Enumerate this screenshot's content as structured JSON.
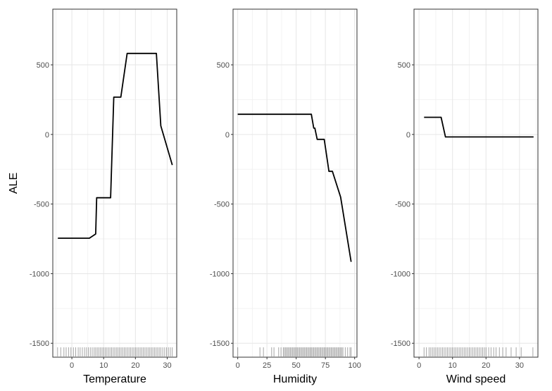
{
  "colors": {
    "background": "#ffffff",
    "panel_border": "#333333",
    "grid_major": "#e6e6e6",
    "grid_minor": "#f2f2f2",
    "line": "#000000",
    "tick_text": "#4d4d4d",
    "rug": "#000000"
  },
  "chart_data": {
    "type": "line",
    "ylabel": "ALE",
    "ylim": [
      -1600,
      900
    ],
    "y_ticks": [
      -1500,
      -1000,
      -500,
      0,
      500
    ],
    "y_tick_labels": [
      "-1500",
      "-1000",
      "-500",
      "0",
      "500"
    ],
    "grid": true,
    "panels": [
      {
        "xlabel": "Temperature",
        "xlim": [
          -6,
          33
        ],
        "x_ticks": [
          0,
          10,
          20,
          30
        ],
        "x_tick_labels": [
          "0",
          "10",
          "20",
          "30"
        ],
        "series": [
          {
            "x": [
              -4.4,
              5.5,
              7.5,
              7.8,
              12.2,
              13.2,
              15.4,
              17.4,
              26.6,
              28.0,
              31.6
            ],
            "y": [
              -745,
              -745,
              -715,
              -455,
              -455,
              268,
              268,
              582,
              582,
              62,
              -220
            ]
          }
        ],
        "rug": [
          -4.5,
          -3.5,
          -2.5,
          -1.8,
          -1.0,
          -0.3,
          0.5,
          1.2,
          2.0,
          2.6,
          3.3,
          4.0,
          4.6,
          5.2,
          5.8,
          6.4,
          7.0,
          7.5,
          8.0,
          8.5,
          9.0,
          9.5,
          10.0,
          10.5,
          11.0,
          11.5,
          12.0,
          12.5,
          13.0,
          13.5,
          14.0,
          14.5,
          15.0,
          15.5,
          16.0,
          16.5,
          17.0,
          17.5,
          18.0,
          18.5,
          19.0,
          19.5,
          20.0,
          20.5,
          21.0,
          21.5,
          22.0,
          22.5,
          23.0,
          23.5,
          24.0,
          24.5,
          25.0,
          25.5,
          26.0,
          26.5,
          27.0,
          27.5,
          28.0,
          28.6,
          29.2,
          29.8,
          30.4,
          31.0,
          31.6
        ]
      },
      {
        "xlabel": "Humidity",
        "xlim": [
          -4,
          102
        ],
        "x_ticks": [
          0,
          25,
          50,
          75,
          100
        ],
        "x_tick_labels": [
          "0",
          "25",
          "50",
          "75",
          "100"
        ],
        "series": [
          {
            "x": [
              0,
              63,
              65,
              66,
              68,
              74,
              78,
              81,
              88,
              97
            ],
            "y": [
              145,
              145,
              45,
              45,
              -35,
              -35,
              -265,
              -265,
              -450,
              -915
            ]
          }
        ],
        "rug": [
          0,
          19,
          22,
          29,
          31,
          35,
          37,
          39,
          40,
          41,
          42,
          43,
          44,
          45,
          46,
          47,
          48,
          49,
          50,
          51,
          52,
          53,
          54,
          55,
          56,
          57,
          58,
          59,
          60,
          61,
          62,
          63,
          64,
          65,
          66,
          67,
          68,
          69,
          70,
          71,
          72,
          73,
          74,
          75,
          76,
          77,
          78,
          79,
          80,
          81,
          82,
          83,
          84,
          85,
          86,
          87,
          88,
          89,
          90,
          92,
          94,
          96,
          97
        ]
      },
      {
        "xlabel": "Wind speed",
        "xlim": [
          -1.5,
          35.5
        ],
        "x_ticks": [
          0,
          10,
          20,
          30
        ],
        "x_tick_labels": [
          "0",
          "10",
          "20",
          "30"
        ],
        "series": [
          {
            "x": [
              1.5,
              6.6,
              7.9,
              34.2
            ],
            "y": [
              123,
              123,
              -18,
              -18
            ]
          }
        ],
        "rug": [
          1.5,
          2.2,
          3.0,
          3.5,
          4.0,
          4.5,
          5.0,
          5.5,
          6.0,
          6.5,
          7.0,
          7.5,
          8.0,
          8.5,
          9.0,
          9.5,
          10.0,
          10.5,
          11.0,
          11.5,
          12.0,
          12.5,
          13.0,
          13.5,
          14.0,
          14.5,
          15.0,
          15.5,
          16.0,
          16.5,
          17.0,
          17.5,
          18.0,
          18.5,
          19.0,
          19.5,
          20.0,
          20.8,
          21.5,
          22.3,
          23.0,
          24.0,
          25.0,
          26.0,
          27.5,
          29.0,
          30.5,
          34.0
        ]
      }
    ]
  }
}
